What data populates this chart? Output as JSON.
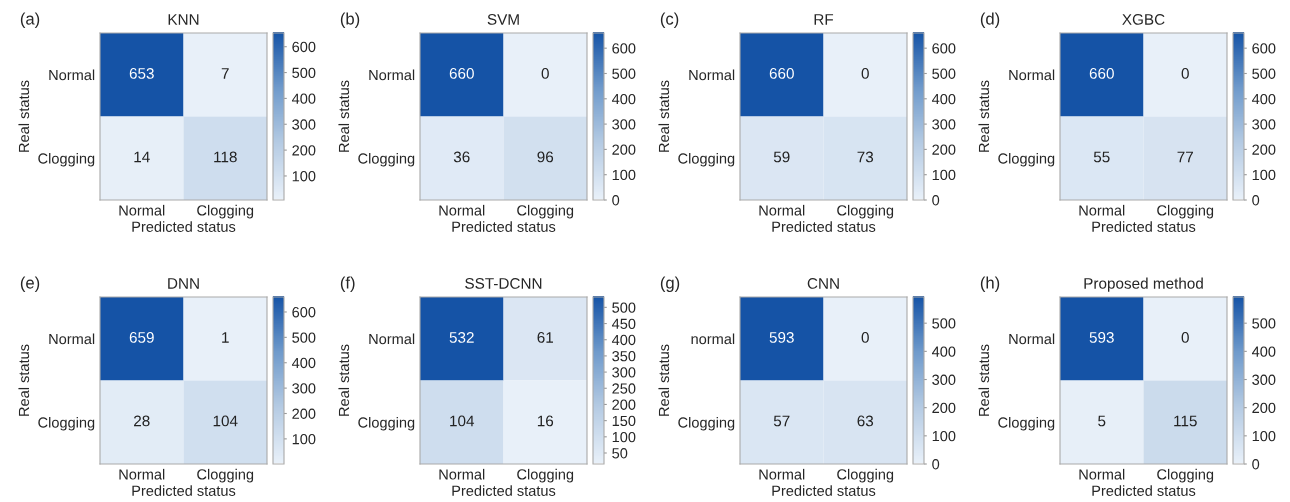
{
  "chart_data": [
    {
      "type": "heatmap",
      "title": "KNN",
      "xlabel": "Predicted status",
      "ylabel": "Real status",
      "annotations": [
        "(a)"
      ],
      "categories": [
        "Normal",
        "Clogging"
      ],
      "y_categories": [
        "Normal",
        "Clogging"
      ],
      "cells": [
        [
          653,
          7
        ],
        [
          14,
          118
        ]
      ],
      "data_labels": true,
      "clim": [
        7,
        653
      ],
      "cticks": [
        100,
        200,
        300,
        400,
        500,
        600
      ]
    },
    {
      "type": "heatmap",
      "title": "SVM",
      "xlabel": "Predicted status",
      "ylabel": "Real status",
      "annotations": [
        "(b)"
      ],
      "categories": [
        "Normal",
        "Clogging"
      ],
      "y_categories": [
        "Normal",
        "Clogging"
      ],
      "cells": [
        [
          660,
          0
        ],
        [
          36,
          96
        ]
      ],
      "data_labels": true,
      "clim": [
        0,
        660
      ],
      "cticks": [
        0,
        100,
        200,
        300,
        400,
        500,
        600
      ]
    },
    {
      "type": "heatmap",
      "title": "RF",
      "xlabel": "Predicted status",
      "ylabel": "Real status",
      "annotations": [
        "(c)"
      ],
      "categories": [
        "Normal",
        "Clogging"
      ],
      "y_categories": [
        "Normal",
        "Clogging"
      ],
      "cells": [
        [
          660,
          0
        ],
        [
          59,
          73
        ]
      ],
      "data_labels": true,
      "clim": [
        0,
        660
      ],
      "cticks": [
        0,
        100,
        200,
        300,
        400,
        500,
        600
      ]
    },
    {
      "type": "heatmap",
      "title": "XGBC",
      "xlabel": "Predicted status",
      "ylabel": "Real status",
      "annotations": [
        "(d)"
      ],
      "categories": [
        "Normal",
        "Clogging"
      ],
      "y_categories": [
        "Normal",
        "Clogging"
      ],
      "cells": [
        [
          660,
          0
        ],
        [
          55,
          77
        ]
      ],
      "data_labels": true,
      "clim": [
        0,
        660
      ],
      "cticks": [
        0,
        100,
        200,
        300,
        400,
        500,
        600
      ]
    },
    {
      "type": "heatmap",
      "title": "DNN",
      "xlabel": "Predicted status",
      "ylabel": "Real status",
      "annotations": [
        "(e)"
      ],
      "categories": [
        "Normal",
        "Clogging"
      ],
      "y_categories": [
        "Normal",
        "Clogging"
      ],
      "cells": [
        [
          659,
          1
        ],
        [
          28,
          104
        ]
      ],
      "data_labels": true,
      "clim": [
        1,
        659
      ],
      "cticks": [
        100,
        200,
        300,
        400,
        500,
        600
      ]
    },
    {
      "type": "heatmap",
      "title": "SST-DCNN",
      "xlabel": "Predicted status",
      "ylabel": "Real status",
      "annotations": [
        "(f)"
      ],
      "categories": [
        "Normal",
        "Clogging"
      ],
      "y_categories": [
        "Normal",
        "Clogging"
      ],
      "cells": [
        [
          532,
          61
        ],
        [
          104,
          16
        ]
      ],
      "data_labels": true,
      "clim": [
        16,
        532
      ],
      "cticks": [
        50,
        100,
        150,
        200,
        250,
        300,
        350,
        400,
        450,
        500
      ]
    },
    {
      "type": "heatmap",
      "title": "CNN",
      "xlabel": "Predicted status",
      "ylabel": "Real status",
      "annotations": [
        "(g)"
      ],
      "categories": [
        "Normal",
        "Clogging"
      ],
      "y_categories": [
        "normal",
        "Clogging"
      ],
      "cells": [
        [
          593,
          0
        ],
        [
          57,
          63
        ]
      ],
      "data_labels": true,
      "clim": [
        0,
        593
      ],
      "cticks": [
        0,
        100,
        200,
        300,
        400,
        500
      ]
    },
    {
      "type": "heatmap",
      "title": "Proposed method",
      "xlabel": "Predicted status",
      "ylabel": "Real status",
      "annotations": [
        "(h)"
      ],
      "categories": [
        "Normal",
        "Clogging"
      ],
      "y_categories": [
        "Normal",
        "Clogging"
      ],
      "cells": [
        [
          593,
          0
        ],
        [
          5,
          115
        ]
      ],
      "data_labels": true,
      "clim": [
        0,
        593
      ],
      "cticks": [
        0,
        100,
        200,
        300,
        400,
        500
      ]
    }
  ]
}
